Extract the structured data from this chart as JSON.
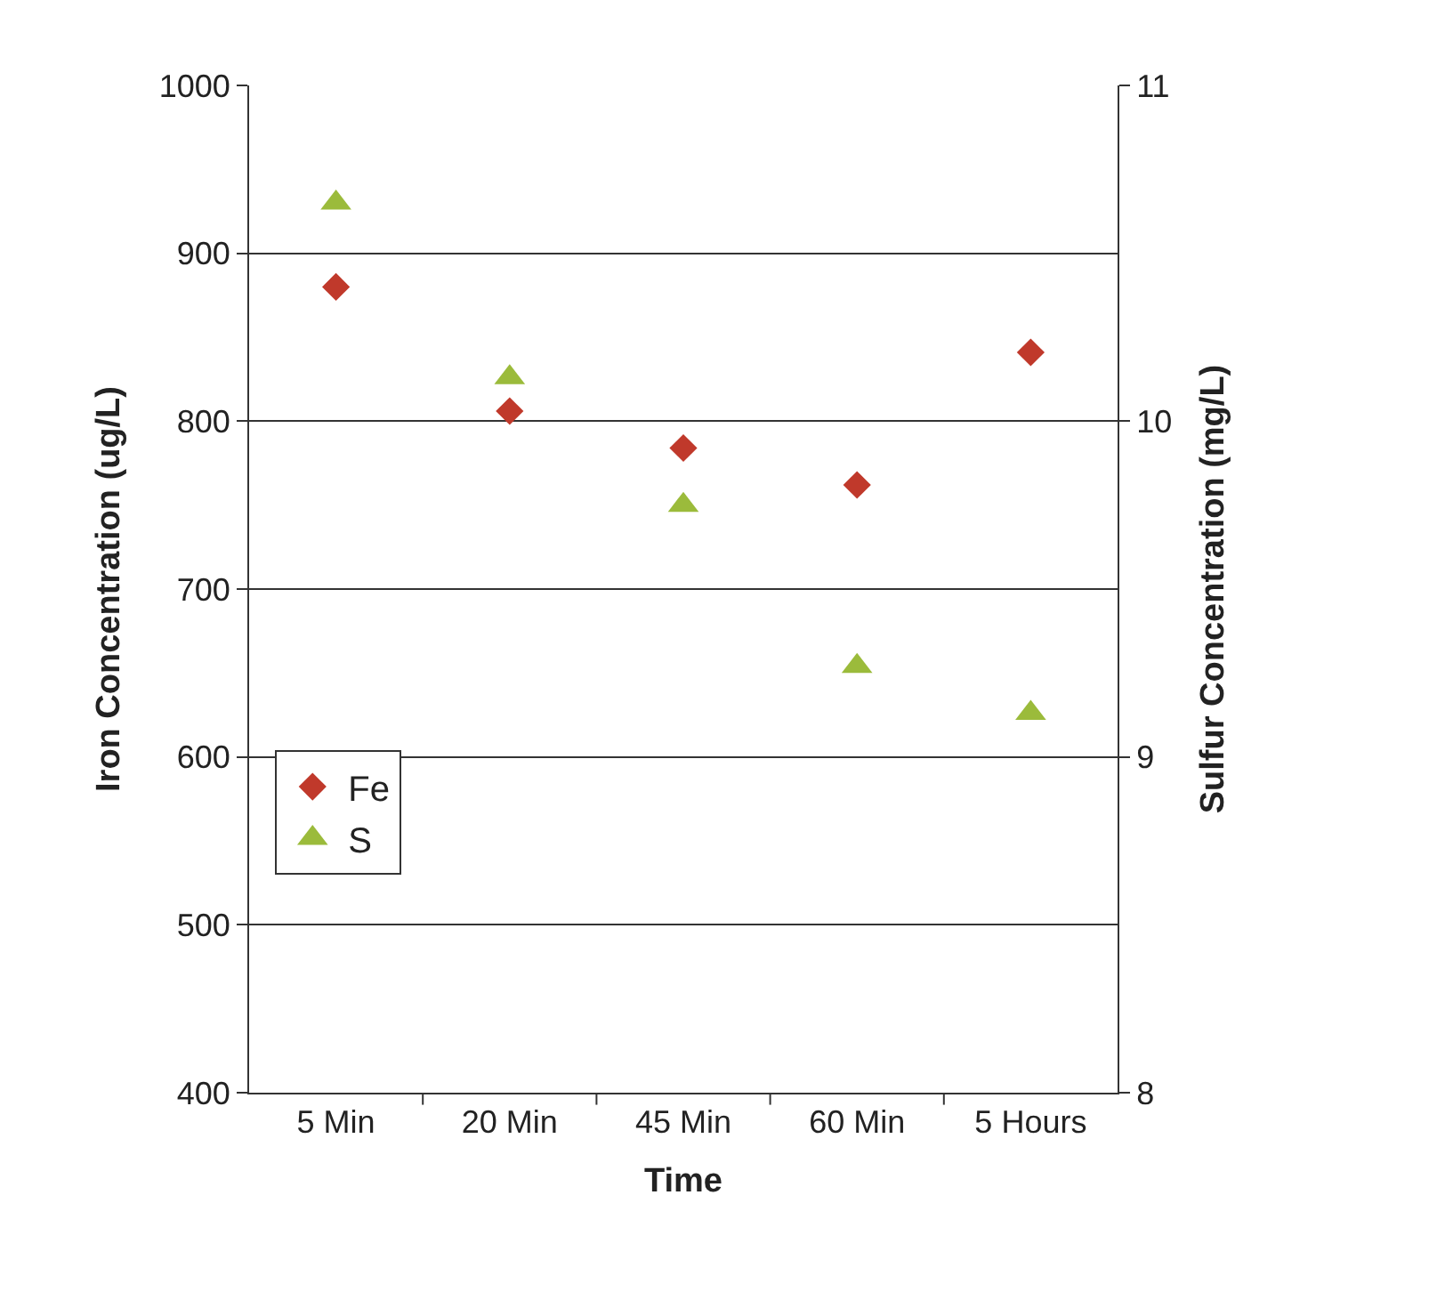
{
  "chart_data": {
    "type": "scatter",
    "xlabel": "Time",
    "ylabel": "Iron Concentration (ug/L)",
    "y2label": "Sulfur Concentration (mg/L)",
    "categories": [
      "5 Min",
      "20 Min",
      "45 Min",
      "60 Min",
      "5 Hours"
    ],
    "series": [
      {
        "name": "Fe",
        "color": "#c0392b",
        "marker": "diamond",
        "values": [
          880,
          806,
          784,
          762,
          841
        ]
      },
      {
        "name": "S",
        "color": "#9bbb3b",
        "marker": "triangle",
        "axis": "y2",
        "values": [
          10.65,
          10.13,
          9.75,
          9.27,
          9.13
        ]
      }
    ],
    "ylim": [
      400,
      1000
    ],
    "yticks": [
      400,
      500,
      600,
      700,
      800,
      900,
      1000
    ],
    "y2lim": [
      8,
      11
    ],
    "y2ticks": [
      8,
      9,
      10,
      11
    ],
    "grid": "y",
    "legend": "left"
  }
}
